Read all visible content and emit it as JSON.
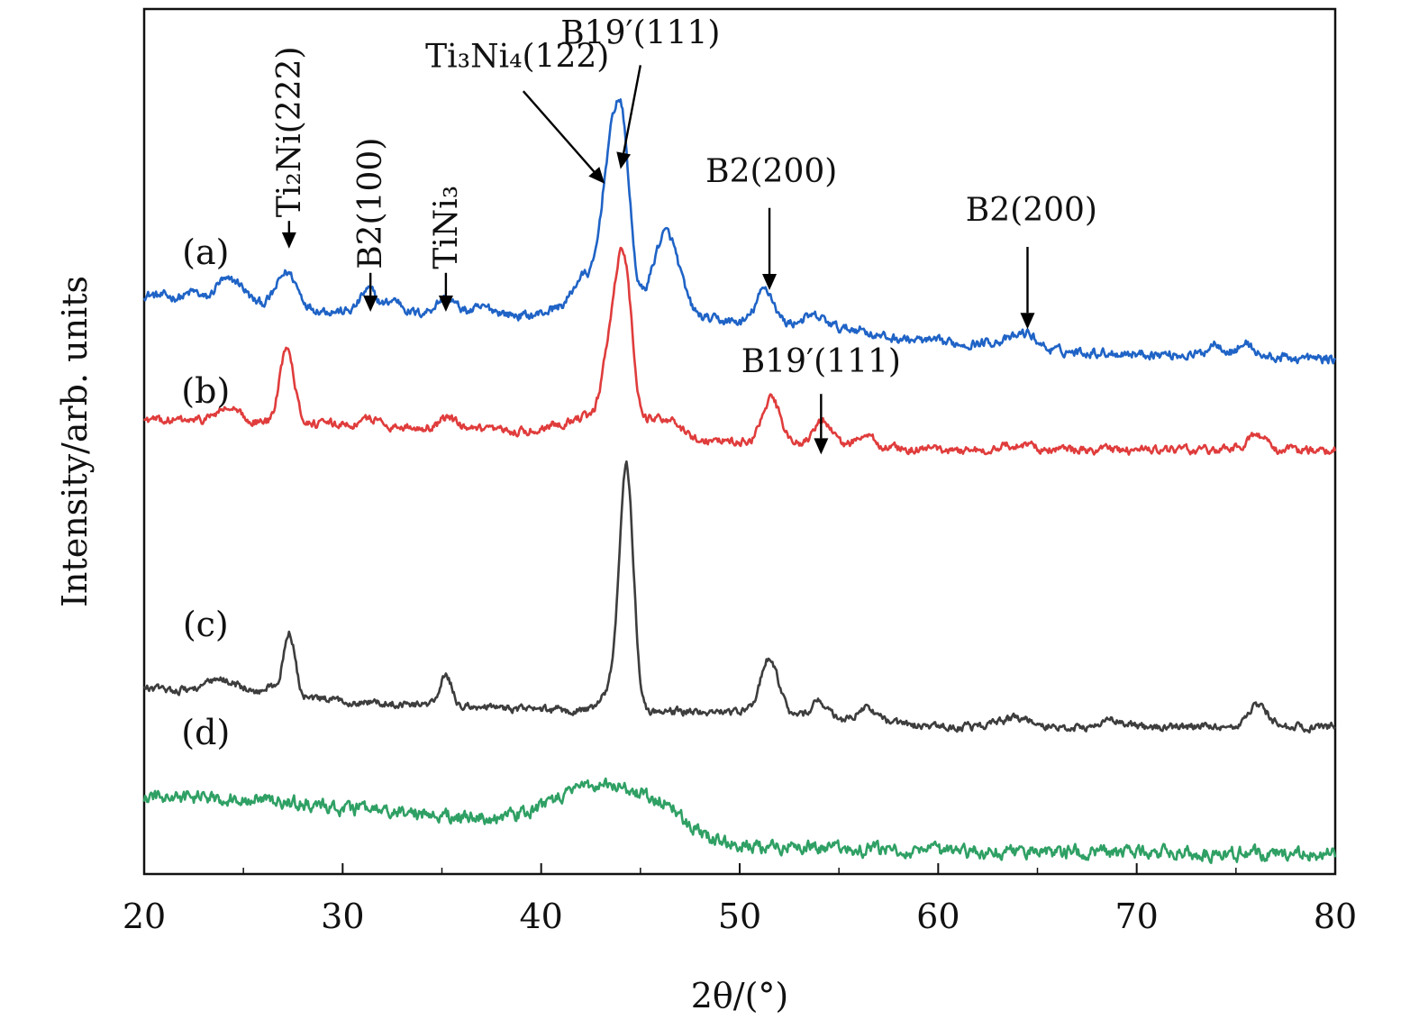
{
  "chart_data": {
    "type": "line",
    "xlabel": "2θ/(°)",
    "ylabel": "Intensity/arb. units",
    "xlim": [
      20,
      80
    ],
    "xticks": [
      20,
      30,
      40,
      50,
      60,
      70,
      80
    ],
    "ylim": [
      0,
      100
    ],
    "grid": false,
    "series": [
      {
        "name": "(a)",
        "color": "#1f63c6",
        "baseline": 67,
        "noise": 0.55,
        "trend": [
          [
            20,
            0
          ],
          [
            30,
            -2
          ],
          [
            40,
            -2.5
          ],
          [
            45,
            -2
          ],
          [
            55,
            -4.5
          ],
          [
            65,
            -6.5
          ],
          [
            80,
            -7.5
          ]
        ],
        "peaks": [
          [
            22.5,
            0.8,
            0.3
          ],
          [
            23.8,
            1.5,
            0.3
          ],
          [
            24.6,
            2.4,
            0.5
          ],
          [
            27.2,
            4.0,
            0.5
          ],
          [
            31.3,
            2.6,
            0.4
          ],
          [
            32.6,
            1.5,
            0.4
          ],
          [
            35.2,
            1.8,
            0.5
          ],
          [
            37.2,
            0.8,
            0.6
          ],
          [
            40.8,
            0.8,
            0.6
          ],
          [
            42.1,
            4.2,
            0.5
          ],
          [
            43.4,
            15.5,
            0.45
          ],
          [
            44.1,
            18.5,
            0.4
          ],
          [
            46.3,
            9.5,
            0.65
          ],
          [
            51.3,
            4.2,
            0.45
          ],
          [
            53.8,
            1.6,
            0.8
          ],
          [
            56.0,
            0.7,
            0.5
          ],
          [
            63.5,
            0.8,
            1.0
          ],
          [
            64.5,
            1.4,
            0.5
          ],
          [
            74.0,
            1.5,
            0.4
          ],
          [
            75.5,
            1.5,
            0.4
          ]
        ]
      },
      {
        "name": "(b)",
        "color": "#e03c3c",
        "baseline": 52.5,
        "noise": 0.5,
        "trend": [
          [
            20,
            0
          ],
          [
            30,
            -0.5
          ],
          [
            40,
            -1.5
          ],
          [
            50,
            -2.5
          ],
          [
            60,
            -3.5
          ],
          [
            80,
            -3.5
          ]
        ],
        "peaks": [
          [
            24.2,
            1.5,
            0.6
          ],
          [
            27.2,
            9.0,
            0.35
          ],
          [
            31.5,
            0.8,
            0.4
          ],
          [
            35.3,
            1.3,
            0.4
          ],
          [
            41.0,
            1.2,
            0.8
          ],
          [
            42.2,
            1.5,
            0.5
          ],
          [
            43.5,
            10.0,
            0.45
          ],
          [
            44.2,
            18.0,
            0.4
          ],
          [
            46.0,
            2.5,
            0.8
          ],
          [
            51.6,
            5.0,
            0.45
          ],
          [
            54.2,
            3.0,
            0.4
          ],
          [
            56.3,
            1.2,
            0.5
          ],
          [
            64.0,
            0.6,
            0.8
          ],
          [
            76.0,
            1.7,
            0.5
          ]
        ]
      },
      {
        "name": "(c)",
        "color": "#3d3d3d",
        "baseline": 21.5,
        "noise": 0.45,
        "trend": [
          [
            20,
            0
          ],
          [
            30,
            -1.5
          ],
          [
            40,
            -2.5
          ],
          [
            50,
            -2.8
          ],
          [
            60,
            -4.5
          ],
          [
            80,
            -4.5
          ]
        ],
        "peaks": [
          [
            24.0,
            1.5,
            0.9
          ],
          [
            26.3,
            1.0,
            0.3
          ],
          [
            27.3,
            7.5,
            0.3
          ],
          [
            35.2,
            3.4,
            0.3
          ],
          [
            43.6,
            2.5,
            0.5
          ],
          [
            44.3,
            27.5,
            0.35
          ],
          [
            51.5,
            6.5,
            0.45
          ],
          [
            54.0,
            2.0,
            0.4
          ],
          [
            56.4,
            1.5,
            0.5
          ],
          [
            63.9,
            1.0,
            0.8
          ],
          [
            68.8,
            0.7,
            0.6
          ],
          [
            76.1,
            2.5,
            0.5
          ]
        ]
      },
      {
        "name": "(d)",
        "color": "#2fa064",
        "baseline": 8.8,
        "noise": 0.8,
        "trend": [
          [
            20,
            0
          ],
          [
            25,
            0
          ],
          [
            30,
            -1.2
          ],
          [
            35,
            -2.0
          ],
          [
            50,
            -5.5
          ],
          [
            60,
            -6.2
          ],
          [
            80,
            -6.5
          ]
        ],
        "peaks": [
          [
            43.3,
            5.6,
            2.4
          ],
          [
            46.3,
            1.5,
            0.8
          ]
        ]
      }
    ],
    "curve_labels": [
      {
        "text": "(a)",
        "x": 23.1,
        "y": 70.5
      },
      {
        "text": "(b)",
        "x": 23.1,
        "y": 54.5
      },
      {
        "text": "(c)",
        "x": 23.1,
        "y": 27.5
      },
      {
        "text": "(d)",
        "x": 23.1,
        "y": 15.0
      }
    ],
    "annotations": [
      {
        "text": "Ti₂Ni(222)",
        "rotated": true,
        "x": 27.3,
        "y": 72.3,
        "label_y": 75.5,
        "arrow_tail_x": 27.3,
        "arrow_tail_y": 75.5
      },
      {
        "text": "B2(100)",
        "rotated": true,
        "x": 31.4,
        "y": 65.0,
        "label_y": 69.5,
        "arrow_tail_x": 31.4,
        "arrow_tail_y": 69.5
      },
      {
        "text": "TiNi₃",
        "rotated": true,
        "x": 35.2,
        "y": 65.0,
        "label_y": 69.5,
        "arrow_tail_x": 35.2,
        "arrow_tail_y": 69.5
      },
      {
        "text": "Ti₃Ni₄(122)",
        "rotated": false,
        "x": 43.2,
        "y": 79.8,
        "label_x": 38.8,
        "label_y": 93.3,
        "arrow_tail_x": 39.1,
        "arrow_tail_y": 90.5
      },
      {
        "text": "B19′(111)",
        "rotated": false,
        "x": 44.0,
        "y": 81.5,
        "label_x": 45.0,
        "label_y": 96.0,
        "arrow_tail_x": 45.0,
        "arrow_tail_y": 93.5
      },
      {
        "text": "B2(200)",
        "rotated": false,
        "x": 51.5,
        "y": 67.5,
        "label_x": 51.6,
        "label_y": 80.0,
        "arrow_tail_x": 51.5,
        "arrow_tail_y": 77.0
      },
      {
        "text": "B2(200)",
        "rotated": false,
        "x": 64.5,
        "y": 63.0,
        "label_x": 64.7,
        "label_y": 75.5,
        "arrow_tail_x": 64.5,
        "arrow_tail_y": 72.5
      },
      {
        "text": "B19′(111)",
        "rotated": false,
        "x": 54.1,
        "y": 48.5,
        "label_x": 54.1,
        "label_y": 58.0,
        "arrow_tail_x": 54.1,
        "arrow_tail_y": 55.5
      }
    ]
  }
}
